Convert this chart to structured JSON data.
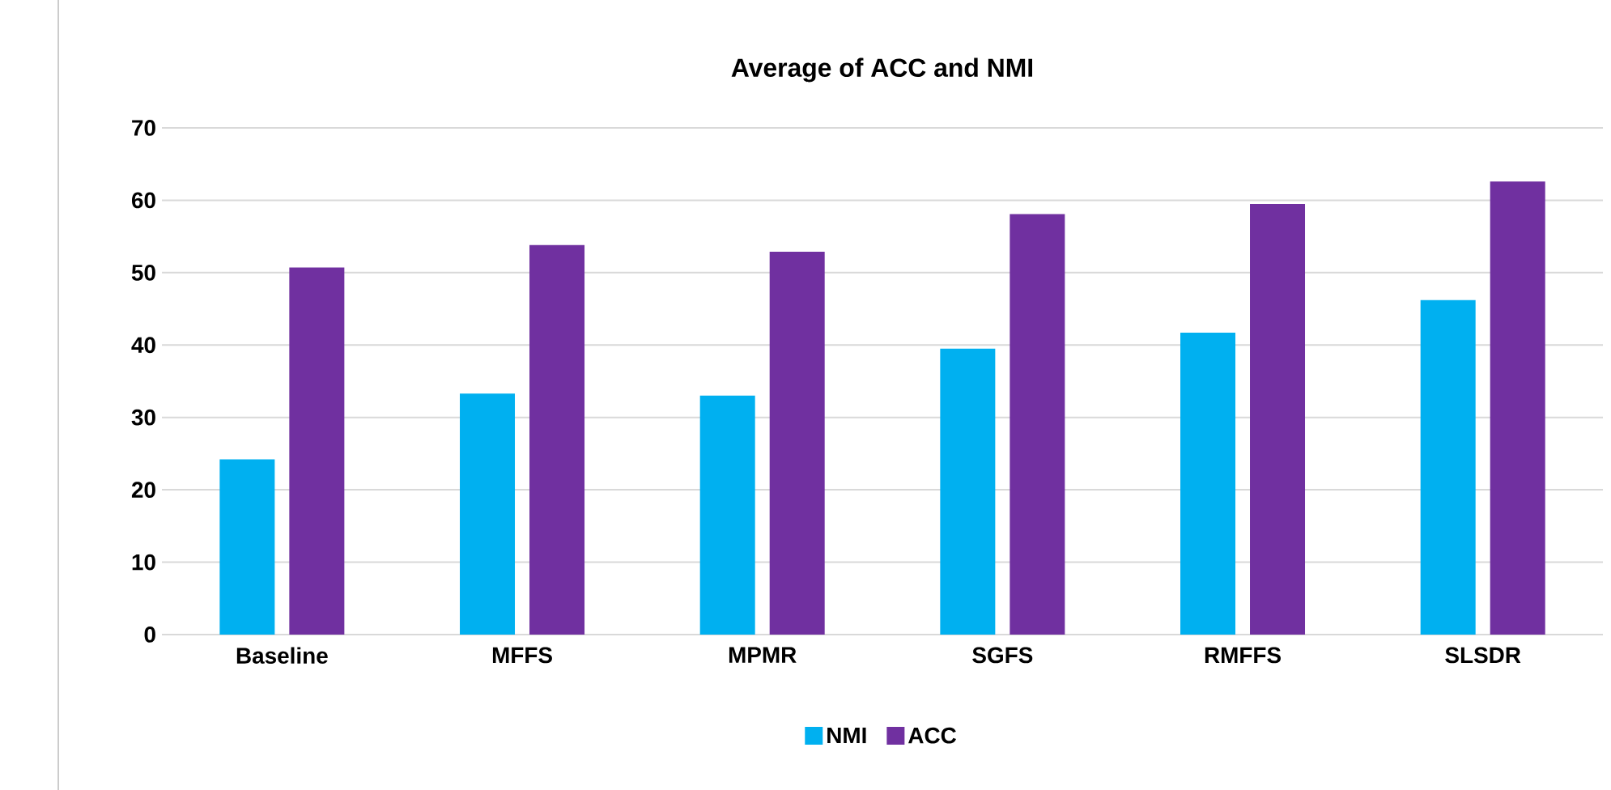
{
  "chart_data": {
    "type": "bar",
    "title": "Average of ACC and NMI",
    "categories": [
      "Baseline",
      "MFFS",
      "MPMR",
      "SGFS",
      "RMFFS",
      "SLSDR"
    ],
    "series": [
      {
        "name": "NMI",
        "color": "#00b0f0",
        "values": [
          24.2,
          33.3,
          33.0,
          39.5,
          41.7,
          46.2
        ]
      },
      {
        "name": "ACC",
        "color": "#7030a0",
        "values": [
          50.7,
          53.8,
          52.9,
          58.1,
          59.5,
          62.6
        ]
      }
    ],
    "ylim": [
      0,
      70
    ],
    "yticks": [
      0,
      10,
      20,
      30,
      40,
      50,
      60,
      70
    ],
    "grid": "y",
    "legend": "bottom"
  }
}
